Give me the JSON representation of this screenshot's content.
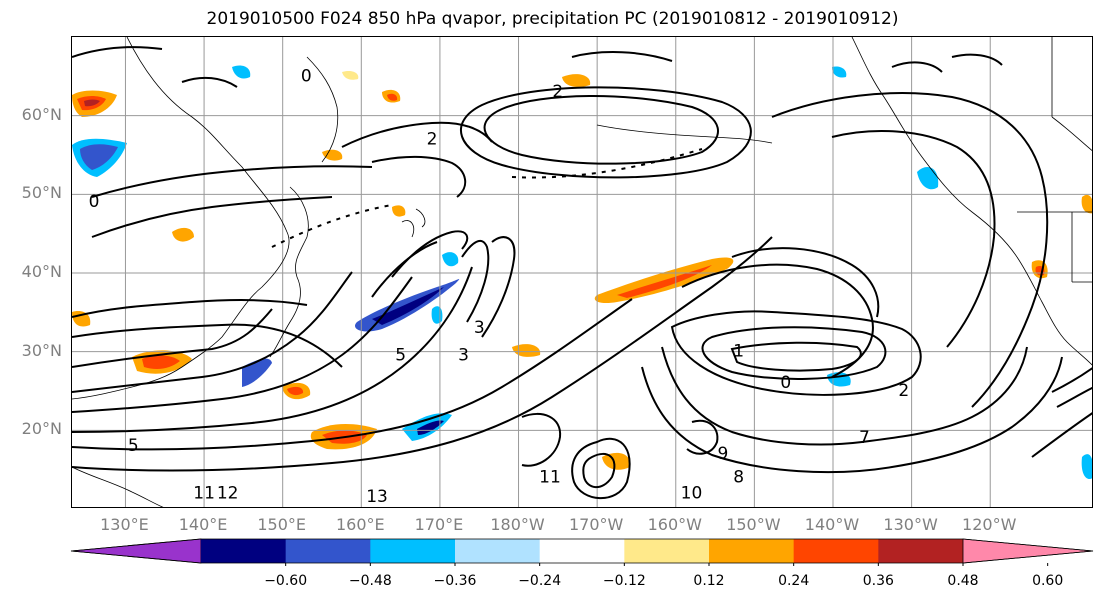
{
  "title": "2019010500 F024 850 hPa qvapor, precipitation PC (2019010812 - 2019010912)",
  "map": {
    "lat_labels": [
      {
        "label": "60°N",
        "lat": 60
      },
      {
        "label": "50°N",
        "lat": 50
      },
      {
        "label": "40°N",
        "lat": 40
      },
      {
        "label": "30°N",
        "lat": 30
      },
      {
        "label": "20°N",
        "lat": 20
      }
    ],
    "lon_labels": [
      {
        "label": "130°E",
        "lon": 130
      },
      {
        "label": "140°E",
        "lon": 140
      },
      {
        "label": "150°E",
        "lon": 150
      },
      {
        "label": "160°E",
        "lon": 160
      },
      {
        "label": "170°E",
        "lon": 170
      },
      {
        "label": "180°W",
        "lon": 180
      },
      {
        "label": "170°W",
        "lon": 190
      },
      {
        "label": "160°W",
        "lon": 200
      },
      {
        "label": "150°W",
        "lon": 210
      },
      {
        "label": "140°W",
        "lon": 220
      },
      {
        "label": "130°W",
        "lon": 230
      },
      {
        "label": "120°W",
        "lon": 240
      }
    ],
    "extent": {
      "lon_min": 123.2,
      "lon_max": 253.2,
      "lat_min": 10,
      "lat_max": 70
    },
    "contour_labels": [
      {
        "text": "0",
        "lon": 153,
        "lat": 65
      },
      {
        "text": "2",
        "lon": 185,
        "lat": 63
      },
      {
        "text": "2",
        "lon": 169,
        "lat": 57
      },
      {
        "text": "0",
        "lon": 126,
        "lat": 49
      },
      {
        "text": "3",
        "lon": 175,
        "lat": 33
      },
      {
        "text": "3",
        "lon": 173,
        "lat": 29.5
      },
      {
        "text": "5",
        "lon": 165,
        "lat": 29.5
      },
      {
        "text": "1",
        "lon": 208,
        "lat": 30
      },
      {
        "text": "0",
        "lon": 214,
        "lat": 26
      },
      {
        "text": "5",
        "lon": 131,
        "lat": 18
      },
      {
        "text": "12",
        "lon": 143,
        "lat": 12
      },
      {
        "text": "11",
        "lon": 140,
        "lat": 12
      },
      {
        "text": "13",
        "lon": 162,
        "lat": 11.5
      },
      {
        "text": "11",
        "lon": 184,
        "lat": 14
      },
      {
        "text": "10",
        "lon": 202,
        "lat": 12
      },
      {
        "text": "9",
        "lon": 206,
        "lat": 17
      },
      {
        "text": "8",
        "lon": 208,
        "lat": 14
      },
      {
        "text": "7",
        "lon": 224,
        "lat": 19
      },
      {
        "text": "2",
        "lon": 229,
        "lat": 25
      }
    ]
  },
  "colorbar": {
    "colors": [
      "#9933cc",
      "#000080",
      "#3355cc",
      "#00bfff",
      "#b0e2ff",
      "#ffffff",
      "#ffe98a",
      "#ffa500",
      "#ff4500",
      "#b22222",
      "#ff88aa"
    ],
    "labels": [
      "−0.60",
      "−0.48",
      "−0.36",
      "−0.24",
      "−0.12",
      "0.12",
      "0.24",
      "0.36",
      "0.48",
      "0.60"
    ]
  }
}
